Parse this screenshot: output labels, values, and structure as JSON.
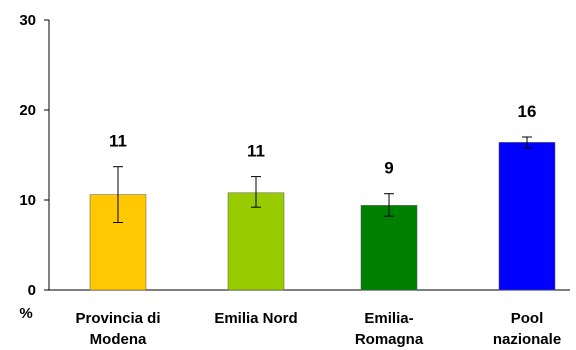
{
  "chart_data": {
    "type": "bar",
    "categories": [
      [
        "Provincia di",
        "Modena"
      ],
      [
        "Emilia Nord"
      ],
      [
        "Emilia-",
        "Romagna"
      ],
      [
        "Pool",
        "nazionale"
      ]
    ],
    "values": [
      10.6,
      10.8,
      9.4,
      16.4
    ],
    "data_labels": [
      "11",
      "11",
      "9",
      "16"
    ],
    "error_bars": [
      {
        "low": 7.5,
        "high": 13.7
      },
      {
        "low": 9.2,
        "high": 12.6
      },
      {
        "low": 8.2,
        "high": 10.7
      },
      {
        "low": 15.8,
        "high": 17.0
      }
    ],
    "colors": [
      "#FFC800",
      "#99CC00",
      "#008000",
      "#0000FF"
    ],
    "ylim": [
      0,
      30
    ],
    "yticks": [
      0,
      10,
      20,
      30
    ],
    "ylabel": "%",
    "grid": false,
    "title": ""
  }
}
